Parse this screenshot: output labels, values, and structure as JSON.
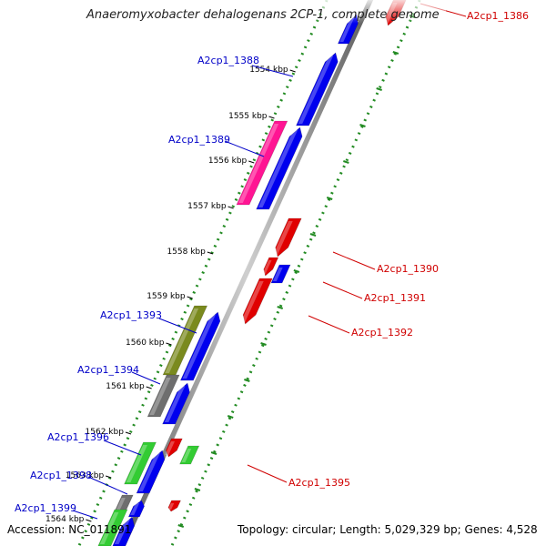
{
  "title": "Anaeromyxobacter dehalogenans 2CP-1, complete genome",
  "footer": {
    "accession_label": "Accession:",
    "accession": "NC_011891",
    "topology_label": "Topology:",
    "topology": "circular",
    "length_label": "Length:",
    "length": "5,029,329 bp",
    "genes_label": "Genes:",
    "genes": "4,528"
  },
  "colors": {
    "forward_cds": "#0000ee",
    "reverse_cds": "#e00000",
    "gene_magenta": "#ff1493",
    "gene_olive": "#7a8a1e",
    "gene_gray": "#6e6e6e",
    "gene_green": "#33cc33",
    "forward_label": "#0000c8",
    "reverse_label": "#d00000",
    "tick_dots": "#228b22",
    "backbone": "#888888"
  },
  "ticks": [
    {
      "label": "1554 kbp"
    },
    {
      "label": "1555 kbp"
    },
    {
      "label": "1556 kbp"
    },
    {
      "label": "1557 kbp"
    },
    {
      "label": "1558 kbp"
    },
    {
      "label": "1559 kbp"
    },
    {
      "label": "1560 kbp"
    },
    {
      "label": "1561 kbp"
    },
    {
      "label": "1562 kbp"
    },
    {
      "label": "1563 kbp"
    },
    {
      "label": "1564 kbp"
    }
  ],
  "genes": [
    {
      "name": "A2cp1_1386",
      "strand": "reverse"
    },
    {
      "name": "A2cp1_1388",
      "strand": "forward"
    },
    {
      "name": "A2cp1_1389",
      "strand": "forward"
    },
    {
      "name": "A2cp1_1390",
      "strand": "reverse"
    },
    {
      "name": "A2cp1_1391",
      "strand": "reverse"
    },
    {
      "name": "A2cp1_1392",
      "strand": "reverse"
    },
    {
      "name": "A2cp1_1393",
      "strand": "forward"
    },
    {
      "name": "A2cp1_1394",
      "strand": "forward"
    },
    {
      "name": "A2cp1_1395",
      "strand": "reverse"
    },
    {
      "name": "A2cp1_1396",
      "strand": "forward"
    },
    {
      "name": "A2cp1_1398",
      "strand": "forward"
    },
    {
      "name": "A2cp1_1399",
      "strand": "forward"
    }
  ]
}
